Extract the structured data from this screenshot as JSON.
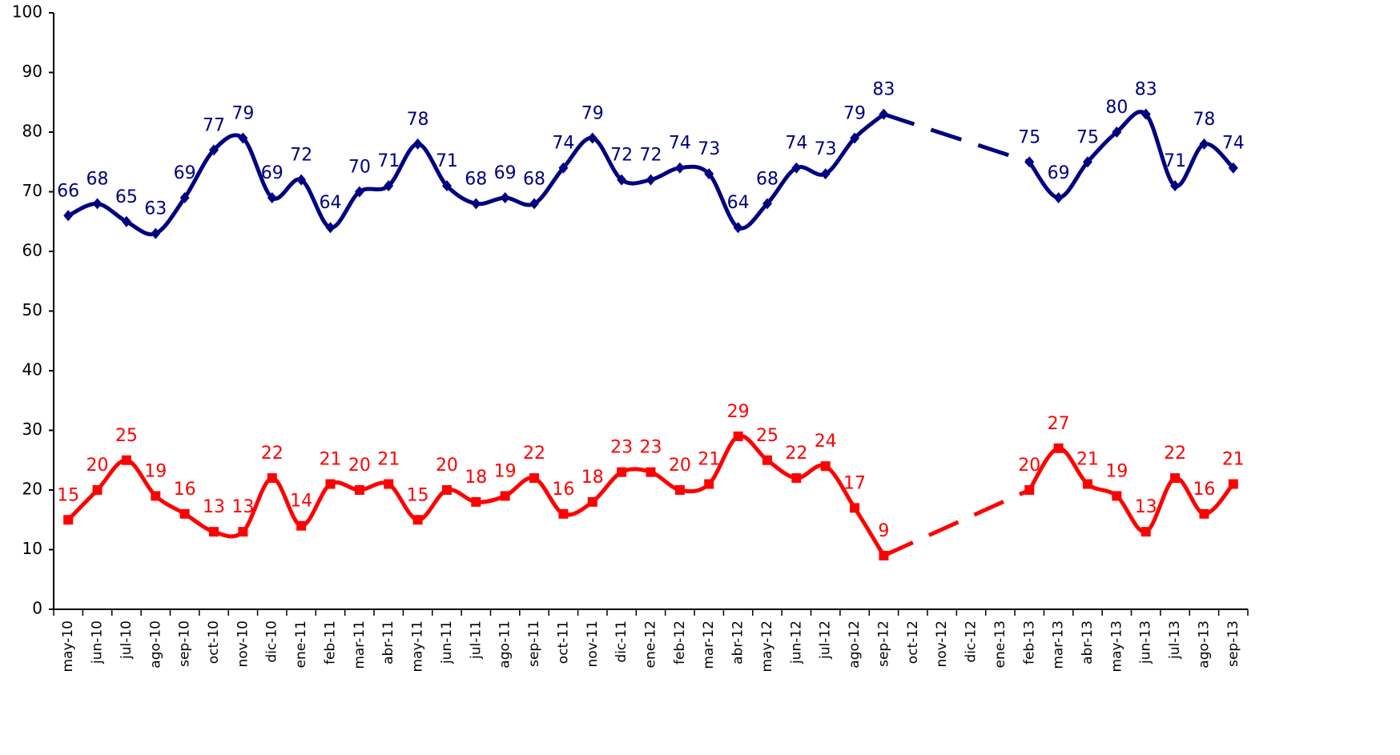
{
  "chart_data": {
    "type": "line",
    "categories": [
      "may-10",
      "jun-10",
      "jul-10",
      "ago-10",
      "sep-10",
      "oct-10",
      "nov-10",
      "dic-10",
      "ene-11",
      "feb-11",
      "mar-11",
      "abr-11",
      "may-11",
      "jun-11",
      "jul-11",
      "ago-11",
      "sep-11",
      "oct-11",
      "nov-11",
      "dic-11",
      "ene-12",
      "feb-12",
      "mar-12",
      "abr-12",
      "may-12",
      "jun-12",
      "jul-12",
      "ago-12",
      "sep-12",
      "oct-12",
      "nov-12",
      "dic-12",
      "ene-13",
      "feb-13",
      "mar-13",
      "abr-13",
      "may-13",
      "jun-13",
      "jul-13",
      "ago-13",
      "sep-13"
    ],
    "series": [
      {
        "color": "#000080",
        "values": [
          66,
          68,
          65,
          63,
          69,
          77,
          79,
          69,
          72,
          64,
          70,
          71,
          78,
          71,
          68,
          69,
          68,
          74,
          79,
          72,
          72,
          74,
          73,
          64,
          68,
          74,
          73,
          79,
          83,
          null,
          null,
          null,
          null,
          75,
          69,
          75,
          80,
          83,
          71,
          78,
          74
        ]
      },
      {
        "color": "#ff0000",
        "values": [
          15,
          20,
          25,
          19,
          16,
          13,
          13,
          22,
          14,
          21,
          20,
          21,
          15,
          20,
          18,
          19,
          22,
          16,
          18,
          23,
          23,
          20,
          21,
          29,
          25,
          22,
          24,
          17,
          9,
          null,
          null,
          null,
          null,
          20,
          27,
          21,
          19,
          13,
          22,
          16,
          21
        ]
      }
    ],
    "ylim": [
      0,
      100
    ],
    "yticks": [
      0,
      10,
      20,
      30,
      40,
      50,
      60,
      70,
      80,
      90,
      100
    ],
    "grid": false
  }
}
